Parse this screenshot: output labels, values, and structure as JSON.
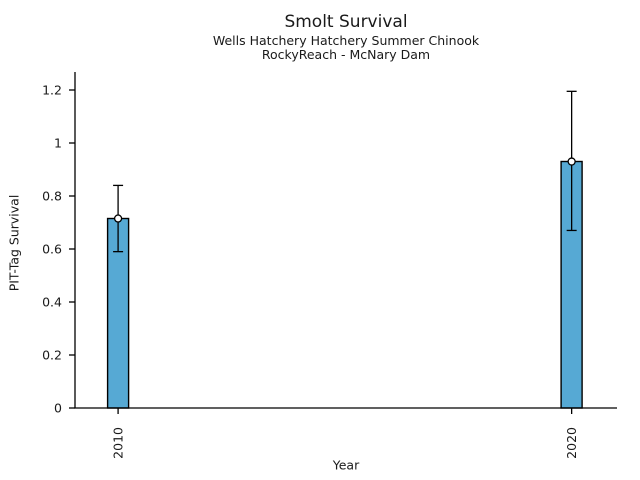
{
  "chart_data": {
    "type": "bar",
    "title": "Smolt Survival",
    "subtitle1": "Wells Hatchery Hatchery Summer Chinook",
    "subtitle2": "RockyReach - McNary Dam",
    "xlabel": "Year",
    "ylabel": "PIT-Tag Survival",
    "categories": [
      "2010",
      "2020"
    ],
    "x_values": [
      2010,
      2020
    ],
    "values": [
      0.715,
      0.93
    ],
    "error_low": [
      0.59,
      0.67
    ],
    "error_high": [
      0.84,
      1.195
    ],
    "ylim": [
      0,
      1.2
    ],
    "xlim": [
      2009.05,
      2021.0
    ],
    "yticks": [
      0,
      0.2,
      0.4,
      0.6,
      0.8,
      1,
      1.2
    ],
    "ytick_labels": [
      "0",
      "0.2",
      "0.4",
      "0.6",
      "0.8",
      "1",
      "1.2"
    ],
    "xtick_labels_rotated": true,
    "grid": false,
    "legend": "none",
    "marker": "open-circle",
    "colors": {
      "bar_fill": "#56a9d4",
      "bar_edge": "#000000",
      "error_bar": "#000000",
      "marker_face": "#ffffff",
      "axis": "#000000",
      "text": "#1a1a1a",
      "background": "#ffffff"
    }
  }
}
